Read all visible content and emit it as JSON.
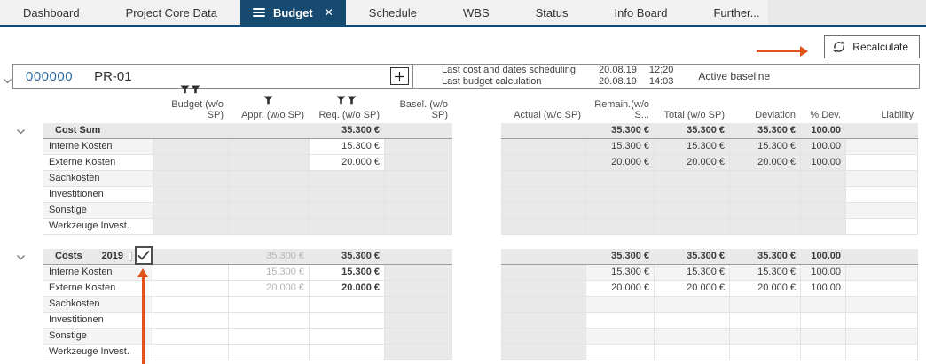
{
  "colors": {
    "accent_navy": "#174a70",
    "annotation_orange": "#e2531b",
    "project_number_blue": "#2f6da8",
    "disabled_cell_gray": "#e9e9e9",
    "group_row_gray": "#e9e9e9"
  },
  "icons": {
    "active_tab_menu": "hamburger-icon",
    "active_tab_close": "close-icon",
    "recalculate": "recalculate-icon",
    "add": "plus-icon",
    "collapse": "chevron-down-icon",
    "column_filter": "filter-icon",
    "checkbox_check": "checkmark-icon",
    "annotations": "arrow-icon"
  },
  "tabs": [
    {
      "label": "Dashboard",
      "active": false
    },
    {
      "label": "Project Core Data",
      "active": false
    },
    {
      "label": "Budget",
      "active": true
    },
    {
      "label": "Schedule",
      "active": false
    },
    {
      "label": "WBS",
      "active": false
    },
    {
      "label": "Status",
      "active": false
    },
    {
      "label": "Info Board",
      "active": false
    },
    {
      "label": "Further...",
      "active": false
    }
  ],
  "toolbar": {
    "recalculate_label": "Recalculate"
  },
  "project": {
    "number": "000000",
    "code": "PR-01",
    "add_button": "+",
    "info": [
      {
        "label": "Last cost and dates scheduling",
        "date": "20.08.19",
        "time": "12:20"
      },
      {
        "label": "Last budget calculation",
        "date": "20.08.19",
        "time": "14:03"
      }
    ],
    "baseline": "Active baseline"
  },
  "table": {
    "columns_left": [
      {
        "id": "budget",
        "label": "Budget (w/o SP)",
        "filter_icons": 2
      },
      {
        "id": "appr",
        "label": "Appr. (w/o SP)",
        "filter_icons": 1
      },
      {
        "id": "req",
        "label": "Req. (w/o SP)",
        "filter_icons": 2
      },
      {
        "id": "basel",
        "label": "Basel. (w/o SP)",
        "filter_icons": 0
      }
    ],
    "columns_right": [
      {
        "id": "actual",
        "label": "Actual (w/o SP)"
      },
      {
        "id": "remain",
        "label": "Remain.(w/o S..."
      },
      {
        "id": "total",
        "label": "Total (w/o SP)"
      },
      {
        "id": "deviation",
        "label": "Deviation"
      },
      {
        "id": "pdev",
        "label": "% Dev."
      },
      {
        "id": "liability",
        "label": "Liability"
      }
    ],
    "groups": [
      {
        "name": "Cost Sum",
        "year": "",
        "has_checkboxes": false,
        "disabled_cols": [
          "budget",
          "appr",
          "req",
          "basel",
          "actual",
          "remain",
          "total",
          "deviation",
          "pdev"
        ],
        "editable_cols": [],
        "gray_text_cols": [],
        "bold_cols": [],
        "header_cells": {
          "req": "35.300 €",
          "remain": "35.300 €",
          "total": "35.300 €",
          "deviation": "35.300 €",
          "pdev": "100.00 %"
        },
        "rows": [
          {
            "label": "Interne Kosten",
            "editable": [
              "req"
            ],
            "cells": {
              "req": "15.300 €",
              "remain": "15.300 €",
              "total": "15.300 €",
              "deviation": "15.300 €",
              "pdev": "100.00 %"
            }
          },
          {
            "label": "Externe Kosten",
            "editable": [
              "req"
            ],
            "cells": {
              "req": "20.000 €",
              "remain": "20.000 €",
              "total": "20.000 €",
              "deviation": "20.000 €",
              "pdev": "100.00 %"
            }
          },
          {
            "label": "Sachkosten",
            "editable": [],
            "cells": {}
          },
          {
            "label": "Investitionen",
            "editable": [],
            "cells": {}
          },
          {
            "label": "Sonstige",
            "editable": [],
            "cells": {}
          },
          {
            "label": "Werkzeuge Invest.",
            "editable": [],
            "cells": {}
          }
        ]
      },
      {
        "name": "Costs",
        "year": "2019",
        "has_checkboxes": true,
        "checkbox_small_checked": false,
        "checkbox_big_checked": true,
        "disabled_cols": [
          "basel",
          "actual"
        ],
        "editable_cols": [
          "budget",
          "appr",
          "req"
        ],
        "gray_text_cols": [
          "appr"
        ],
        "bold_cols": [
          "req"
        ],
        "header_cells": {
          "appr": "35.300 €",
          "req": "35.300 €",
          "remain": "35.300 €",
          "total": "35.300 €",
          "deviation": "35.300 €",
          "pdev": "100.00 %"
        },
        "rows": [
          {
            "label": "Interne Kosten",
            "editable": [],
            "cells": {
              "appr": "15.300 €",
              "req": "15.300 €",
              "remain": "15.300 €",
              "total": "15.300 €",
              "deviation": "15.300 €",
              "pdev": "100.00 %"
            }
          },
          {
            "label": "Externe Kosten",
            "editable": [],
            "cells": {
              "appr": "20.000 €",
              "req": "20.000 €",
              "remain": "20.000 €",
              "total": "20.000 €",
              "deviation": "20.000 €",
              "pdev": "100.00 %"
            }
          },
          {
            "label": "Sachkosten",
            "editable": [],
            "cells": {}
          },
          {
            "label": "Investitionen",
            "editable": [],
            "cells": {}
          },
          {
            "label": "Sonstige",
            "editable": [],
            "cells": {}
          },
          {
            "label": "Werkzeuge Invest.",
            "editable": [],
            "cells": {}
          }
        ]
      }
    ]
  }
}
